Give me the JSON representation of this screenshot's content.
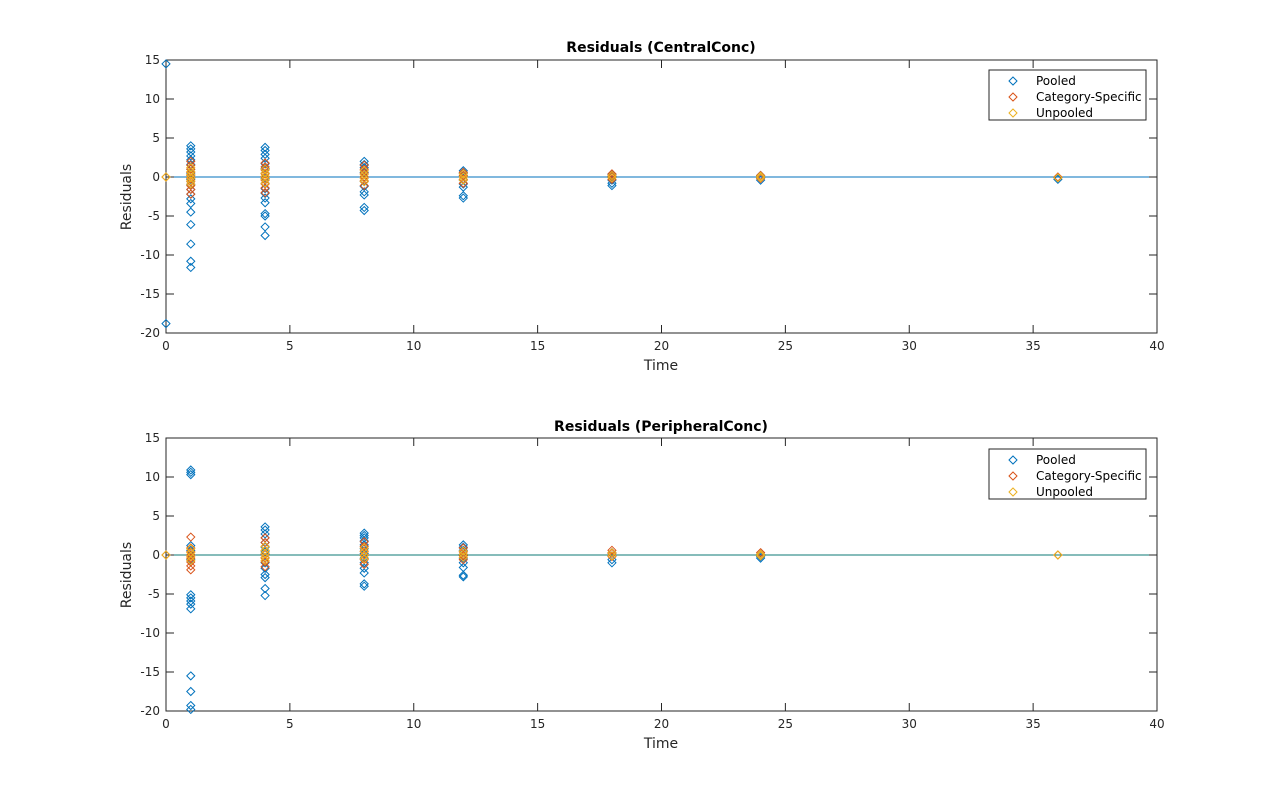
{
  "colors": {
    "pooled": "#0072BD",
    "category_specific": "#D95319",
    "unpooled": "#EDB120",
    "zero_line": "#0072BD",
    "zero_line_2": "#0E7A75",
    "axes": "#262626"
  },
  "chart_data": [
    {
      "type": "scatter",
      "title": "Residuals (CentralConc)",
      "xlabel": "Time",
      "ylabel": "Residuals",
      "xlim": [
        0,
        40
      ],
      "ylim": [
        -20,
        15
      ],
      "xticks": [
        0,
        5,
        10,
        15,
        20,
        25,
        30,
        35,
        40
      ],
      "yticks": [
        -20,
        -15,
        -10,
        -5,
        0,
        5,
        10,
        15
      ],
      "marker": "diamond",
      "legend_position": "top-right",
      "zero_line": true,
      "series": [
        {
          "name": "Pooled",
          "points": [
            [
              0,
              14.5
            ],
            [
              0,
              -18.8
            ],
            [
              1,
              4.0
            ],
            [
              1,
              3.6
            ],
            [
              1,
              3.2
            ],
            [
              1,
              2.7
            ],
            [
              1,
              2.2
            ],
            [
              1,
              1.6
            ],
            [
              1,
              1.0
            ],
            [
              1,
              0.4
            ],
            [
              1,
              -0.3
            ],
            [
              1,
              -1.0
            ],
            [
              1,
              -1.6
            ],
            [
              1,
              -2.2
            ],
            [
              1,
              -2.8
            ],
            [
              1,
              -3.4
            ],
            [
              1,
              -4.5
            ],
            [
              1,
              -6.1
            ],
            [
              1,
              -8.6
            ],
            [
              1,
              -10.8
            ],
            [
              1,
              -11.6
            ],
            [
              4,
              3.8
            ],
            [
              4,
              3.4
            ],
            [
              4,
              2.9
            ],
            [
              4,
              2.4
            ],
            [
              4,
              1.7
            ],
            [
              4,
              1.1
            ],
            [
              4,
              0.5
            ],
            [
              4,
              -0.2
            ],
            [
              4,
              -0.8
            ],
            [
              4,
              -1.5
            ],
            [
              4,
              -2.1
            ],
            [
              4,
              -2.7
            ],
            [
              4,
              -3.3
            ],
            [
              4,
              -4.7
            ],
            [
              4,
              -5.0
            ],
            [
              4,
              -6.4
            ],
            [
              4,
              -7.5
            ],
            [
              8,
              2.0
            ],
            [
              8,
              1.6
            ],
            [
              8,
              1.2
            ],
            [
              8,
              0.6
            ],
            [
              8,
              0.0
            ],
            [
              8,
              -0.6
            ],
            [
              8,
              -1.2
            ],
            [
              8,
              -1.9
            ],
            [
              8,
              -2.3
            ],
            [
              8,
              -3.9
            ],
            [
              8,
              -4.3
            ],
            [
              12,
              0.8
            ],
            [
              12,
              0.5
            ],
            [
              12,
              0.1
            ],
            [
              12,
              -0.4
            ],
            [
              12,
              -0.9
            ],
            [
              12,
              -1.3
            ],
            [
              12,
              -2.4
            ],
            [
              12,
              -2.7
            ],
            [
              18,
              0.3
            ],
            [
              18,
              0.0
            ],
            [
              18,
              -0.4
            ],
            [
              18,
              -0.8
            ],
            [
              18,
              -1.1
            ],
            [
              24,
              0.2
            ],
            [
              24,
              -0.1
            ],
            [
              24,
              -0.4
            ],
            [
              36,
              -0.1
            ],
            [
              36,
              -0.3
            ]
          ]
        },
        {
          "name": "Category-Specific",
          "points": [
            [
              0,
              0.0
            ],
            [
              1,
              2.0
            ],
            [
              1,
              1.5
            ],
            [
              1,
              1.0
            ],
            [
              1,
              0.6
            ],
            [
              1,
              0.2
            ],
            [
              1,
              -0.2
            ],
            [
              1,
              -0.6
            ],
            [
              1,
              -1.1
            ],
            [
              1,
              -1.6
            ],
            [
              1,
              -2.2
            ],
            [
              4,
              1.8
            ],
            [
              4,
              1.3
            ],
            [
              4,
              0.9
            ],
            [
              4,
              0.4
            ],
            [
              4,
              0.0
            ],
            [
              4,
              -0.4
            ],
            [
              4,
              -0.9
            ],
            [
              4,
              -1.4
            ],
            [
              4,
              -2.0
            ],
            [
              8,
              1.5
            ],
            [
              8,
              1.0
            ],
            [
              8,
              0.5
            ],
            [
              8,
              0.0
            ],
            [
              8,
              -0.5
            ],
            [
              8,
              -1.1
            ],
            [
              12,
              0.6
            ],
            [
              12,
              0.2
            ],
            [
              12,
              -0.3
            ],
            [
              12,
              -0.8
            ],
            [
              18,
              0.4
            ],
            [
              18,
              0.1
            ],
            [
              18,
              -0.3
            ],
            [
              24,
              0.2
            ],
            [
              24,
              -0.2
            ],
            [
              36,
              0.0
            ]
          ]
        },
        {
          "name": "Unpooled",
          "points": [
            [
              0,
              0.0
            ],
            [
              1,
              1.2
            ],
            [
              1,
              0.7
            ],
            [
              1,
              0.3
            ],
            [
              1,
              -0.1
            ],
            [
              1,
              -0.5
            ],
            [
              1,
              -0.9
            ],
            [
              4,
              1.0
            ],
            [
              4,
              0.5
            ],
            [
              4,
              0.1
            ],
            [
              4,
              -0.3
            ],
            [
              4,
              -0.8
            ],
            [
              8,
              0.8
            ],
            [
              8,
              0.3
            ],
            [
              8,
              -0.2
            ],
            [
              8,
              -0.6
            ],
            [
              12,
              0.4
            ],
            [
              12,
              0.0
            ],
            [
              12,
              -0.4
            ],
            [
              18,
              0.2
            ],
            [
              18,
              -0.1
            ],
            [
              24,
              0.1
            ],
            [
              24,
              -0.1
            ],
            [
              36,
              -0.1
            ]
          ]
        }
      ]
    },
    {
      "type": "scatter",
      "title": "Residuals (PeripheralConc)",
      "xlabel": "Time",
      "ylabel": "Residuals",
      "xlim": [
        0,
        40
      ],
      "ylim": [
        -20,
        15
      ],
      "xticks": [
        0,
        5,
        10,
        15,
        20,
        25,
        30,
        35,
        40
      ],
      "yticks": [
        -20,
        -15,
        -10,
        -5,
        0,
        5,
        10,
        15
      ],
      "marker": "diamond",
      "legend_position": "top-right",
      "zero_line": true,
      "series": [
        {
          "name": "Pooled",
          "points": [
            [
              1,
              10.9
            ],
            [
              1,
              10.6
            ],
            [
              1,
              10.3
            ],
            [
              1,
              1.2
            ],
            [
              1,
              0.6
            ],
            [
              1,
              0.0
            ],
            [
              1,
              -0.6
            ],
            [
              1,
              -5.1
            ],
            [
              1,
              -5.5
            ],
            [
              1,
              -5.9
            ],
            [
              1,
              -6.3
            ],
            [
              1,
              -6.9
            ],
            [
              1,
              -15.5
            ],
            [
              1,
              -17.5
            ],
            [
              1,
              -19.3
            ],
            [
              1,
              -19.8
            ],
            [
              4,
              3.6
            ],
            [
              4,
              3.2
            ],
            [
              4,
              2.7
            ],
            [
              4,
              2.2
            ],
            [
              4,
              1.6
            ],
            [
              4,
              1.0
            ],
            [
              4,
              0.4
            ],
            [
              4,
              -0.3
            ],
            [
              4,
              -1.0
            ],
            [
              4,
              -1.7
            ],
            [
              4,
              -2.5
            ],
            [
              4,
              -2.9
            ],
            [
              4,
              -4.3
            ],
            [
              4,
              -5.2
            ],
            [
              8,
              2.8
            ],
            [
              8,
              2.5
            ],
            [
              8,
              2.2
            ],
            [
              8,
              1.8
            ],
            [
              8,
              1.3
            ],
            [
              8,
              0.8
            ],
            [
              8,
              0.2
            ],
            [
              8,
              -0.4
            ],
            [
              8,
              -1.0
            ],
            [
              8,
              -1.7
            ],
            [
              8,
              -2.3
            ],
            [
              8,
              -3.7
            ],
            [
              8,
              -4.0
            ],
            [
              12,
              1.3
            ],
            [
              12,
              1.0
            ],
            [
              12,
              0.6
            ],
            [
              12,
              0.1
            ],
            [
              12,
              -0.4
            ],
            [
              12,
              -1.0
            ],
            [
              12,
              -1.6
            ],
            [
              12,
              -2.6
            ],
            [
              12,
              -2.8
            ],
            [
              18,
              0.3
            ],
            [
              18,
              -0.1
            ],
            [
              18,
              -0.6
            ],
            [
              18,
              -1.0
            ],
            [
              24,
              0.1
            ],
            [
              24,
              -0.2
            ],
            [
              24,
              -0.4
            ]
          ]
        },
        {
          "name": "Category-Specific",
          "points": [
            [
              0,
              0.0
            ],
            [
              1,
              2.3
            ],
            [
              1,
              0.9
            ],
            [
              1,
              0.4
            ],
            [
              1,
              0.0
            ],
            [
              1,
              -0.4
            ],
            [
              1,
              -0.9
            ],
            [
              1,
              -1.4
            ],
            [
              1,
              -1.9
            ],
            [
              4,
              2.2
            ],
            [
              4,
              1.6
            ],
            [
              4,
              1.1
            ],
            [
              4,
              0.6
            ],
            [
              4,
              0.1
            ],
            [
              4,
              -0.4
            ],
            [
              4,
              -0.9
            ],
            [
              4,
              -1.5
            ],
            [
              8,
              1.7
            ],
            [
              8,
              1.1
            ],
            [
              8,
              0.5
            ],
            [
              8,
              0.0
            ],
            [
              8,
              -0.6
            ],
            [
              8,
              -1.2
            ],
            [
              12,
              0.9
            ],
            [
              12,
              0.4
            ],
            [
              12,
              -0.1
            ],
            [
              12,
              -0.6
            ],
            [
              18,
              0.6
            ],
            [
              18,
              0.2
            ],
            [
              18,
              -0.2
            ],
            [
              24,
              0.3
            ],
            [
              24,
              -0.1
            ],
            [
              36,
              0.0
            ]
          ]
        },
        {
          "name": "Unpooled",
          "points": [
            [
              0,
              0.0
            ],
            [
              1,
              0.8
            ],
            [
              1,
              0.3
            ],
            [
              1,
              -0.2
            ],
            [
              1,
              -0.7
            ],
            [
              4,
              1.1
            ],
            [
              4,
              0.6
            ],
            [
              4,
              0.2
            ],
            [
              4,
              -0.3
            ],
            [
              4,
              -0.7
            ],
            [
              8,
              0.9
            ],
            [
              8,
              0.4
            ],
            [
              8,
              -0.1
            ],
            [
              8,
              -0.5
            ],
            [
              12,
              0.5
            ],
            [
              12,
              0.1
            ],
            [
              12,
              -0.3
            ],
            [
              18,
              0.3
            ],
            [
              18,
              -0.1
            ],
            [
              24,
              0.1
            ],
            [
              24,
              -0.1
            ],
            [
              36,
              0.0
            ]
          ]
        }
      ]
    }
  ]
}
